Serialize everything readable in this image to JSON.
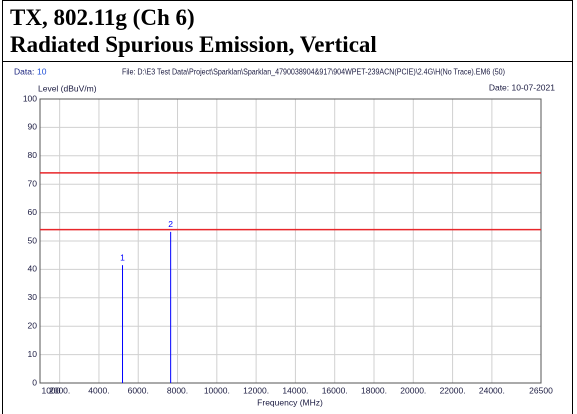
{
  "header": {
    "title": "TX, 802.11g (Ch 6)",
    "subtitle": "Radiated Spurious Emission, Vertical"
  },
  "chart_data": {
    "type": "spectrum",
    "data_label": "Data:",
    "data_number": "10",
    "file": "File: D:\\E3 Test Data\\Project\\Sparklan\\Sparklan_4790038904&917\\904WPET-239ACN(PCIE)\\2.4G\\H(No Trace).EM6  (50)",
    "date": "Date: 10-07-2021",
    "y_label": "Level (dBuV/m)",
    "x_label": "Frequency (MHz)",
    "x": [
      5200,
      7650
    ],
    "values": [
      41.5,
      53.2
    ],
    "point_labels": [
      "1",
      "2"
    ],
    "color": "#0000ff",
    "limit_lines": [
      74,
      54
    ],
    "limit_color": "#e8262a",
    "xlim": [
      1000,
      26500
    ],
    "xticks": [
      1000,
      {
        "value": 2000,
        "label": "2000."
      },
      {
        "value": 4000,
        "label": "4000."
      },
      {
        "value": 6000,
        "label": "6000."
      },
      {
        "value": 8000,
        "label": "8000."
      },
      {
        "value": 10000,
        "label": "10000."
      },
      {
        "value": 12000,
        "label": "12000."
      },
      {
        "value": 14000,
        "label": "14000."
      },
      {
        "value": 16000,
        "label": "16000."
      },
      {
        "value": 18000,
        "label": "18000."
      },
      {
        "value": 20000,
        "label": "20000."
      },
      {
        "value": 22000,
        "label": "22000."
      },
      {
        "value": 24000,
        "label": "24000."
      },
      26500
    ],
    "ylim": [
      0,
      100
    ],
    "yticks": [
      0,
      10,
      20,
      30,
      40,
      50,
      60,
      70,
      80,
      90,
      100
    ],
    "grid": true
  }
}
